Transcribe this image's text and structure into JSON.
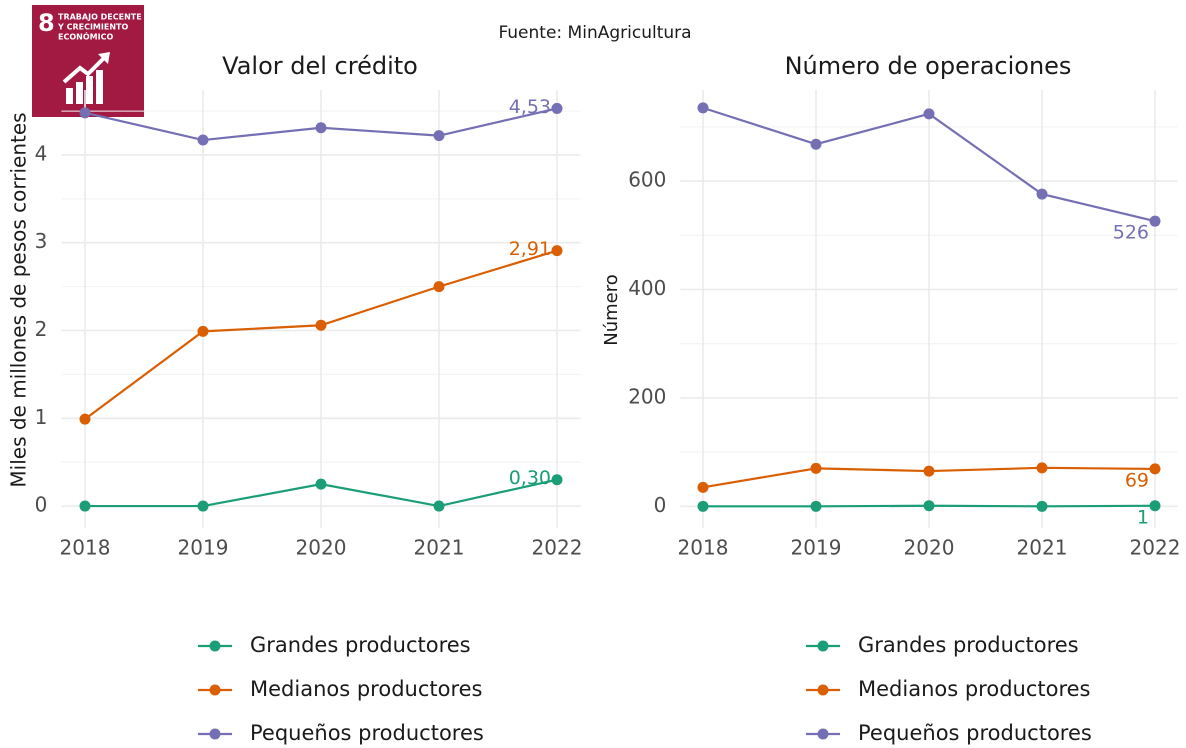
{
  "caption": "Fuente: MinAgricultura",
  "logo": {
    "number": "8",
    "lines": [
      "TRABAJO DECENTE",
      "Y CRECIMIENTO",
      "ECONÓMICO"
    ]
  },
  "chart_data": [
    {
      "type": "line",
      "title": "Valor del crédito",
      "y_label": "Miles de millones de pesos corrientes",
      "x": [
        2018,
        2019,
        2020,
        2021,
        2022
      ],
      "xlim": [
        2017.8,
        2022.2
      ],
      "xticks": [
        2018,
        2019,
        2020,
        2021,
        2022
      ],
      "ylim": [
        -0.25,
        4.74
      ],
      "yticks": [
        0,
        1,
        2,
        3,
        4
      ],
      "grid": true,
      "data_labels": "last",
      "series": [
        {
          "name": "Grandes productores",
          "color": "#1b9e77",
          "values": [
            0,
            0,
            0.25,
            0,
            0.3
          ],
          "value_labels": [
            null,
            null,
            null,
            null,
            "0,30"
          ]
        },
        {
          "name": "Medianos productores",
          "color": "#d95f02",
          "values": [
            0.99,
            1.99,
            2.06,
            2.5,
            2.91
          ],
          "value_labels": [
            null,
            null,
            null,
            null,
            "2,91"
          ]
        },
        {
          "name": "Pequeños productores",
          "color": "#7570b3",
          "values": [
            4.48,
            4.17,
            4.31,
            4.22,
            4.53
          ],
          "value_labels": [
            null,
            null,
            null,
            null,
            "4,53"
          ]
        }
      ]
    },
    {
      "type": "line",
      "title": "Número de operaciones",
      "y_label": "Número",
      "x": [
        2018,
        2019,
        2020,
        2021,
        2022
      ],
      "xlim": [
        2017.8,
        2022.2
      ],
      "xticks": [
        2018,
        2019,
        2020,
        2021,
        2022
      ],
      "ylim": [
        -40,
        768
      ],
      "yticks": [
        0,
        200,
        400,
        600
      ],
      "grid": true,
      "data_labels": "last",
      "series": [
        {
          "name": "Grandes productores",
          "color": "#1b9e77",
          "values": [
            0,
            0,
            1,
            0,
            1
          ]
        },
        {
          "name": "Medianos productores",
          "color": "#d95f02",
          "values": [
            35,
            70,
            65,
            71,
            69
          ]
        },
        {
          "name": "Pequeños productores",
          "color": "#7570b3",
          "values": [
            735,
            668,
            724,
            576,
            526
          ]
        }
      ]
    }
  ]
}
